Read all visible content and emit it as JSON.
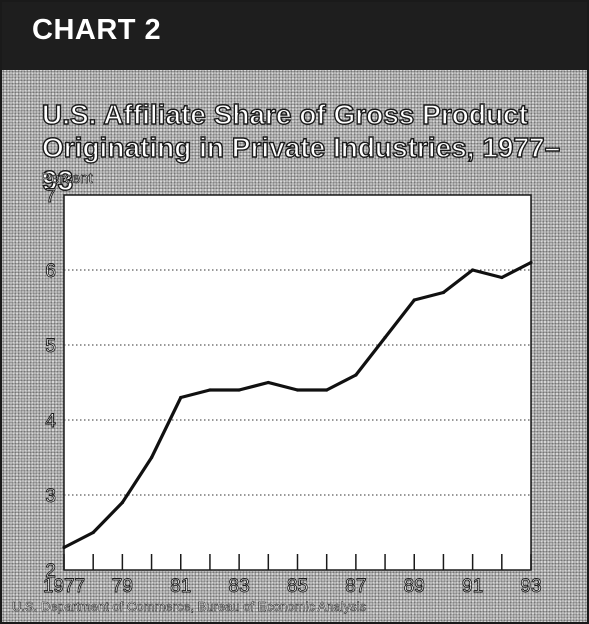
{
  "header": {
    "chart_label": "CHART 2"
  },
  "title_line_1": "U.S. Affiliate Share of Gross Product",
  "title_line_2": "Originating in Private Industries, 1977–93",
  "source": "U.S. Department of Commerce, Bureau of Economic Analysis",
  "colors": {
    "header": "#1e1e1e",
    "line": "#111111",
    "plot_background": "#ffffff",
    "panel": "#bdbdbd"
  },
  "chart_data": {
    "type": "line",
    "title": "U.S. Affiliate Share of Gross Product Originating in Private Industries, 1977–93",
    "ylabel": "Percent",
    "xlabel": "",
    "xlim": [
      1977,
      1993
    ],
    "ylim": [
      2,
      7
    ],
    "x_ticks": [
      1977,
      1978,
      1979,
      1980,
      1981,
      1982,
      1983,
      1984,
      1985,
      1986,
      1987,
      1988,
      1989,
      1990,
      1991,
      1992,
      1993
    ],
    "x_tick_labels": [
      "1977",
      "79",
      "81",
      "83",
      "85",
      "87",
      "89",
      "91",
      "93"
    ],
    "x_tick_label_years": [
      1977,
      1979,
      1981,
      1983,
      1985,
      1987,
      1989,
      1991,
      1993
    ],
    "y_ticks": [
      2,
      3,
      4,
      5,
      6,
      7
    ],
    "y_tick_labels": [
      "2",
      "3",
      "4",
      "5",
      "6",
      "7"
    ],
    "grid": "horizontal dotted",
    "series": [
      {
        "x": [
          1977,
          1978,
          1979,
          1980,
          1981,
          1982,
          1983,
          1984,
          1985,
          1986,
          1987,
          1988,
          1989,
          1990,
          1991,
          1992,
          1993
        ],
        "values": [
          2.3,
          2.5,
          2.9,
          3.5,
          4.3,
          4.4,
          4.4,
          4.5,
          4.4,
          4.4,
          4.6,
          5.1,
          5.6,
          5.7,
          6.0,
          5.9,
          6.1
        ]
      }
    ]
  }
}
